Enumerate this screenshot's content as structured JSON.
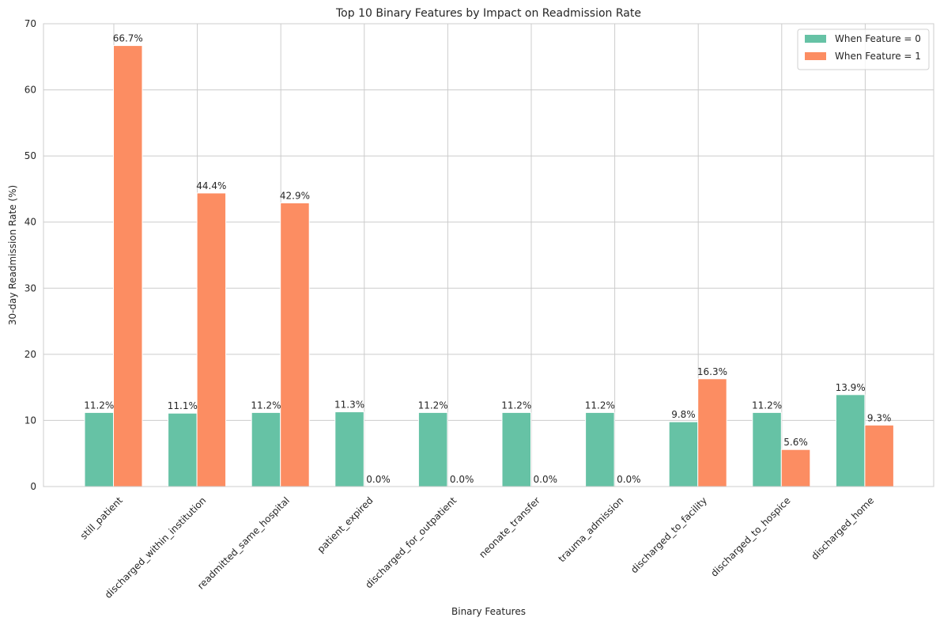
{
  "chart_data": {
    "type": "bar",
    "title": "Top 10 Binary Features by Impact on Readmission Rate",
    "xlabel": "Binary Features",
    "ylabel": "30-day Readmission Rate (%)",
    "ylim": [
      0,
      70
    ],
    "yticks": [
      "0",
      "10",
      "20",
      "30",
      "40",
      "50",
      "60",
      "70"
    ],
    "grid": true,
    "legend_position": "top-right",
    "categories": [
      "still_patient",
      "discharged_within_institution",
      "readmitted_same_hospital",
      "patient_expired",
      "discharged_for_outpatient",
      "neonate_transfer",
      "trauma_admission",
      "discharged_to_facility",
      "discharged_to_hospice",
      "discharged_home"
    ],
    "series": [
      {
        "name": "When Feature = 0",
        "color": "#66c2a5",
        "values": [
          11.2,
          11.1,
          11.2,
          11.3,
          11.2,
          11.2,
          11.2,
          9.8,
          11.2,
          13.9
        ],
        "labels": [
          "11.2%",
          "11.1%",
          "11.2%",
          "11.3%",
          "11.2%",
          "11.2%",
          "11.2%",
          "9.8%",
          "11.2%",
          "13.9%"
        ]
      },
      {
        "name": "When Feature = 1",
        "color": "#fc8d62",
        "values": [
          66.7,
          44.4,
          42.9,
          0.0,
          0.0,
          0.0,
          0.0,
          16.3,
          5.6,
          9.3
        ],
        "labels": [
          "66.7%",
          "44.4%",
          "42.9%",
          "0.0%",
          "0.0%",
          "0.0%",
          "0.0%",
          "16.3%",
          "5.6%",
          "9.3%"
        ]
      }
    ]
  }
}
